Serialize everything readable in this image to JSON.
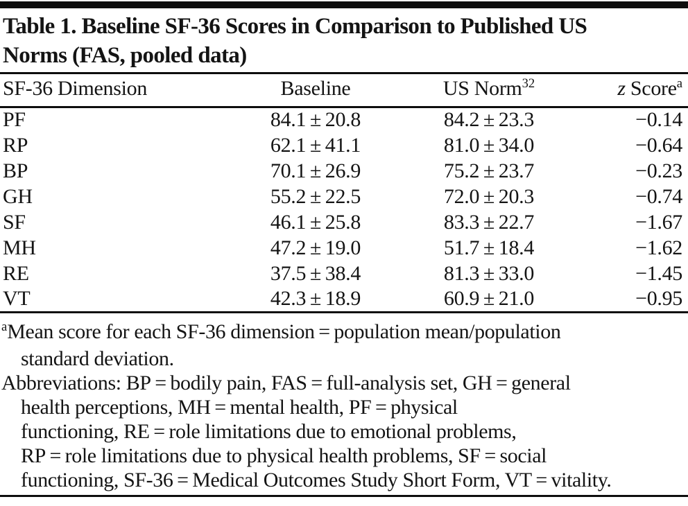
{
  "colors": {
    "text": "#141414",
    "rule": "#0d0d0d",
    "background": "#ffffff"
  },
  "title": {
    "line1": "Table 1. Baseline SF-36 Scores in Comparison to Published US",
    "line2": "Norms (FAS, pooled data)"
  },
  "table": {
    "headers": {
      "dimension": "SF-36 Dimension",
      "baseline": "Baseline",
      "us_norm": "US Norm",
      "us_norm_sup": "32",
      "z_italic": "z",
      "score": " Score",
      "z_sup": "a"
    },
    "rows": [
      {
        "dimension": "PF",
        "baseline": "84.1 ± 20.8",
        "us_norm": "84.2 ± 23.3",
        "z_score": "−0.14"
      },
      {
        "dimension": "RP",
        "baseline": "62.1 ± 41.1",
        "us_norm": "81.0 ± 34.0",
        "z_score": "−0.64"
      },
      {
        "dimension": "BP",
        "baseline": "70.1 ± 26.9",
        "us_norm": "75.2 ± 23.7",
        "z_score": "−0.23"
      },
      {
        "dimension": "GH",
        "baseline": "55.2 ± 22.5",
        "us_norm": "72.0 ± 20.3",
        "z_score": "−0.74"
      },
      {
        "dimension": "SF",
        "baseline": "46.1 ± 25.8",
        "us_norm": "83.3 ± 22.7",
        "z_score": "−1.67"
      },
      {
        "dimension": "MH",
        "baseline": "47.2 ± 19.0",
        "us_norm": "51.7 ± 18.4",
        "z_score": "−1.62"
      },
      {
        "dimension": "RE",
        "baseline": "37.5 ± 38.4",
        "us_norm": "81.3 ± 33.0",
        "z_score": "−1.45"
      },
      {
        "dimension": "VT",
        "baseline": "42.3 ± 18.9",
        "us_norm": "60.9 ± 21.0",
        "z_score": "−0.95"
      }
    ]
  },
  "footnotes": [
    {
      "sup": "a",
      "text": "Mean score for each SF-36 dimension = population mean/population",
      "indent": false
    },
    {
      "sup": "",
      "text": "standard deviation.",
      "indent": true
    },
    {
      "sup": "",
      "text": "Abbreviations: BP = bodily pain, FAS = full-analysis set, GH = general",
      "indent": false
    },
    {
      "sup": "",
      "text": "health perceptions, MH = mental health, PF = physical",
      "indent": true
    },
    {
      "sup": "",
      "text": "functioning, RE = role limitations due to emotional problems,",
      "indent": true
    },
    {
      "sup": "",
      "text": "RP = role limitations due to physical health problems, SF = social",
      "indent": true
    },
    {
      "sup": "",
      "text": "functioning, SF-36 = Medical Outcomes Study Short Form, VT = vitality.",
      "indent": true
    }
  ]
}
